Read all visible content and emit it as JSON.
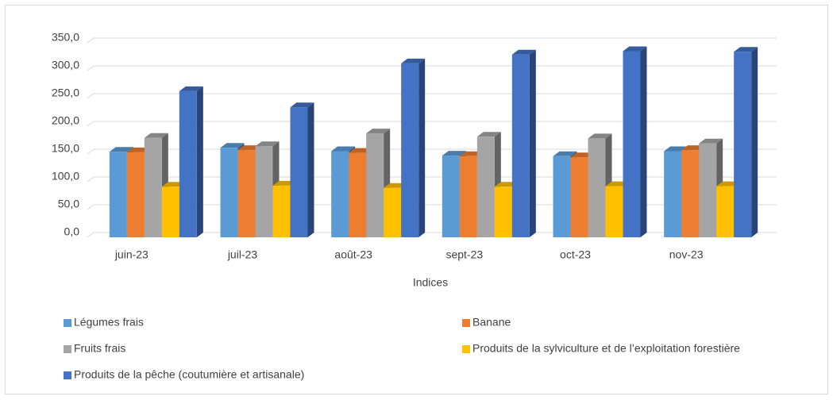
{
  "chart_data": {
    "type": "bar3d",
    "x_label": "Indices",
    "categories": [
      "juin-23",
      "juil-23",
      "août-23",
      "sept-23",
      "oct-23",
      "nov-23"
    ],
    "series": [
      {
        "name": "Légumes frais",
        "color": "#5b9bd5",
        "values": [
          154,
          161,
          155,
          147,
          146,
          155
        ]
      },
      {
        "name": "Banane",
        "color": "#ed7d31",
        "values": [
          153,
          157,
          152,
          146,
          144,
          157
        ]
      },
      {
        "name": "Fruits frais",
        "color": "#a5a5a5",
        "values": [
          179,
          164,
          187,
          181,
          178,
          169
        ]
      },
      {
        "name": "Produits de la sylviculture et de l’exploitation forestière",
        "color": "#ffc000",
        "values": [
          91,
          93,
          89,
          91,
          92,
          92
        ]
      },
      {
        "name": "Produits de la pêche (coutumière et artisanale)",
        "color": "#4472c4",
        "values": [
          263,
          234,
          313,
          329,
          335,
          334
        ]
      }
    ],
    "ylim": [
      0,
      350
    ],
    "yticks": [
      {
        "value": 0,
        "label": "0,0"
      },
      {
        "value": 50,
        "label": "50,0"
      },
      {
        "value": 100,
        "label": "100,0"
      },
      {
        "value": 150,
        "label": "150,0"
      },
      {
        "value": 200,
        "label": "200,0"
      },
      {
        "value": 250,
        "label": "250,0"
      },
      {
        "value": 300,
        "label": "300,0"
      },
      {
        "value": 350,
        "label": "350,0"
      }
    ],
    "grid": true,
    "legend": "bottom"
  }
}
